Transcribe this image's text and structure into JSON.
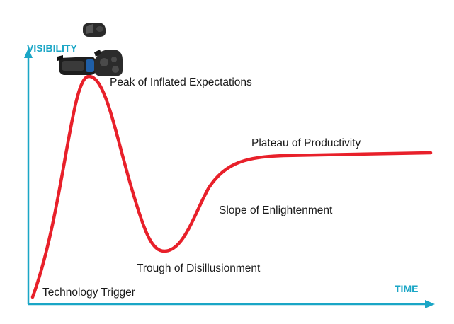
{
  "axes": {
    "y_label": "VISIBILITY",
    "x_label": "TIME"
  },
  "phases": [
    {
      "id": "technology-trigger",
      "label": "Technology Trigger"
    },
    {
      "id": "peak",
      "label": "Peak of Inflated Expectations"
    },
    {
      "id": "trough",
      "label": "Trough of Disillusionment"
    },
    {
      "id": "slope",
      "label": "Slope of Enlightenment"
    },
    {
      "id": "plateau",
      "label": "Plateau of Productivity"
    }
  ],
  "icons": [
    "vr-headset-icon",
    "vr-headset-icon",
    "vr-headset-icon"
  ],
  "colors": {
    "axis": "#1aa6c6",
    "curve": "#e8202a",
    "text": "#1a1a1a",
    "headset": "#2a2a2a"
  }
}
